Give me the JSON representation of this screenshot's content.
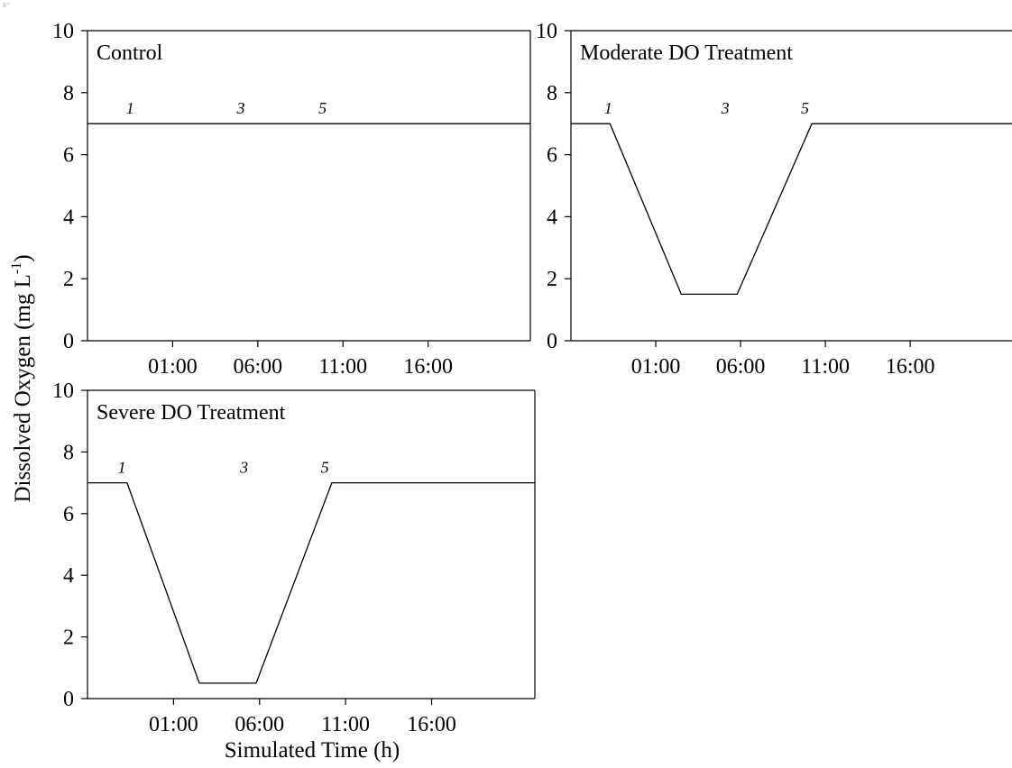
{
  "figure": {
    "ylabel_main": "Dissolved Oxygen (mg L",
    "ylabel_sup": "-1",
    "ylabel_close": ")",
    "xlabel": "Simulated Time (h)"
  },
  "chart_data": [
    {
      "type": "line",
      "title": "Control",
      "ylim": [
        0,
        10
      ],
      "yticks": [
        0,
        2,
        4,
        6,
        8,
        10
      ],
      "xlim": [
        -4,
        22
      ],
      "xticks": [
        1,
        6,
        11,
        16
      ],
      "xtick_labels": [
        "01:00",
        "06:00",
        "11:00",
        "16:00"
      ],
      "x": [
        -4,
        22
      ],
      "y": [
        7,
        7
      ],
      "phase_labels": [
        {
          "text": "1",
          "x": -1.5
        },
        {
          "text": "3",
          "x": 5
        },
        {
          "text": "5",
          "x": 9.8
        }
      ]
    },
    {
      "type": "line",
      "title": "Moderate DO Treatment",
      "ylim": [
        0,
        10
      ],
      "yticks": [
        0,
        2,
        4,
        6,
        8,
        10
      ],
      "xlim": [
        -4,
        22
      ],
      "xticks": [
        1,
        6,
        11,
        16
      ],
      "xtick_labels": [
        "01:00",
        "06:00",
        "11:00",
        "16:00"
      ],
      "x": [
        -4,
        -1.7,
        2.5,
        5.8,
        10.2,
        22
      ],
      "y": [
        7,
        7,
        1.5,
        1.5,
        7,
        7
      ],
      "phase_labels": [
        {
          "text": "1",
          "x": -1.8
        },
        {
          "text": "3",
          "x": 5.1
        },
        {
          "text": "5",
          "x": 9.8
        }
      ]
    },
    {
      "type": "line",
      "title": "Severe DO Treatment",
      "ylim": [
        0,
        10
      ],
      "yticks": [
        0,
        2,
        4,
        6,
        8,
        10
      ],
      "xlim": [
        -4,
        22
      ],
      "xticks": [
        1,
        6,
        11,
        16
      ],
      "xtick_labels": [
        "01:00",
        "06:00",
        "11:00",
        "16:00"
      ],
      "x": [
        -4,
        -1.7,
        2.5,
        5.8,
        10.2,
        22
      ],
      "y": [
        7,
        7,
        0.5,
        0.5,
        7,
        7
      ],
      "phase_labels": [
        {
          "text": "1",
          "x": -2.0
        },
        {
          "text": "3",
          "x": 5.1
        },
        {
          "text": "5",
          "x": 9.8
        }
      ]
    }
  ]
}
